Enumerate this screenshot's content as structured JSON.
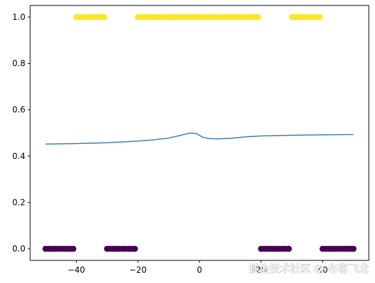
{
  "chart_data": {
    "type": "scatter",
    "xlim": [
      -55,
      55
    ],
    "ylim": [
      -0.05,
      1.05
    ],
    "xticks": [
      {
        "value": -40,
        "label": "−40"
      },
      {
        "value": -20,
        "label": "−20"
      },
      0,
      {
        "value": 20,
        "label": "20"
      },
      {
        "value": 40,
        "label": "40"
      }
    ],
    "yticks": [
      {
        "value": 0,
        "label": "0.0"
      },
      {
        "value": 0.2,
        "label": "0.2"
      },
      {
        "value": 0.4,
        "label": "0.4"
      },
      {
        "value": 0.6,
        "label": "0.6"
      },
      {
        "value": 0.8,
        "label": "0.8"
      },
      {
        "value": 1,
        "label": "1.0"
      }
    ],
    "grid": false,
    "series": [
      {
        "type": "scatter",
        "color": "#440154",
        "x": [
          -50,
          -49,
          -48,
          -47,
          -46,
          -45,
          -44,
          -43,
          -42,
          -41,
          -30,
          -29,
          -28,
          -27,
          -26,
          -25,
          -24,
          -23,
          -22,
          -21,
          20,
          21,
          22,
          23,
          24,
          25,
          26,
          27,
          28,
          29,
          40,
          41,
          42,
          43,
          44,
          45,
          46,
          47,
          48,
          49,
          50
        ],
        "values": [
          0,
          0,
          0,
          0,
          0,
          0,
          0,
          0,
          0,
          0,
          0,
          0,
          0,
          0,
          0,
          0,
          0,
          0,
          0,
          0,
          0,
          0,
          0,
          0,
          0,
          0,
          0,
          0,
          0,
          0,
          0,
          0,
          0,
          0,
          0,
          0,
          0,
          0,
          0,
          0,
          0
        ]
      },
      {
        "type": "scatter",
        "color": "#fde725",
        "x": [
          -40,
          -39,
          -38,
          -37,
          -36,
          -35,
          -34,
          -33,
          -32,
          -31,
          -20,
          -19,
          -18,
          -17,
          -16,
          -15,
          -14,
          -13,
          -12,
          -11,
          -10,
          -9,
          -8,
          -7,
          -6,
          -5,
          -4,
          -3,
          -2,
          -1,
          0,
          1,
          2,
          3,
          4,
          5,
          6,
          7,
          8,
          9,
          10,
          11,
          12,
          13,
          14,
          15,
          16,
          17,
          18,
          19,
          30,
          31,
          32,
          33,
          34,
          35,
          36,
          37,
          38,
          39
        ],
        "values": [
          1,
          1,
          1,
          1,
          1,
          1,
          1,
          1,
          1,
          1,
          1,
          1,
          1,
          1,
          1,
          1,
          1,
          1,
          1,
          1,
          1,
          1,
          1,
          1,
          1,
          1,
          1,
          1,
          1,
          1,
          1,
          1,
          1,
          1,
          1,
          1,
          1,
          1,
          1,
          1,
          1,
          1,
          1,
          1,
          1,
          1,
          1,
          1,
          1,
          1,
          1,
          1,
          1,
          1,
          1,
          1,
          1,
          1,
          1,
          1
        ]
      },
      {
        "type": "line",
        "color": "#3a7db5",
        "x": [
          -50,
          -40,
          -30,
          -20,
          -15,
          -10,
          -6,
          -3,
          -1,
          1,
          3,
          6,
          10,
          15,
          20,
          30,
          40,
          50
        ],
        "values": [
          0.452,
          0.454,
          0.458,
          0.465,
          0.47,
          0.478,
          0.49,
          0.5,
          0.497,
          0.482,
          0.476,
          0.474,
          0.477,
          0.483,
          0.487,
          0.49,
          0.492,
          0.493
        ]
      }
    ]
  },
  "watermark": "掘金技术社区 @ 布客飞龙"
}
